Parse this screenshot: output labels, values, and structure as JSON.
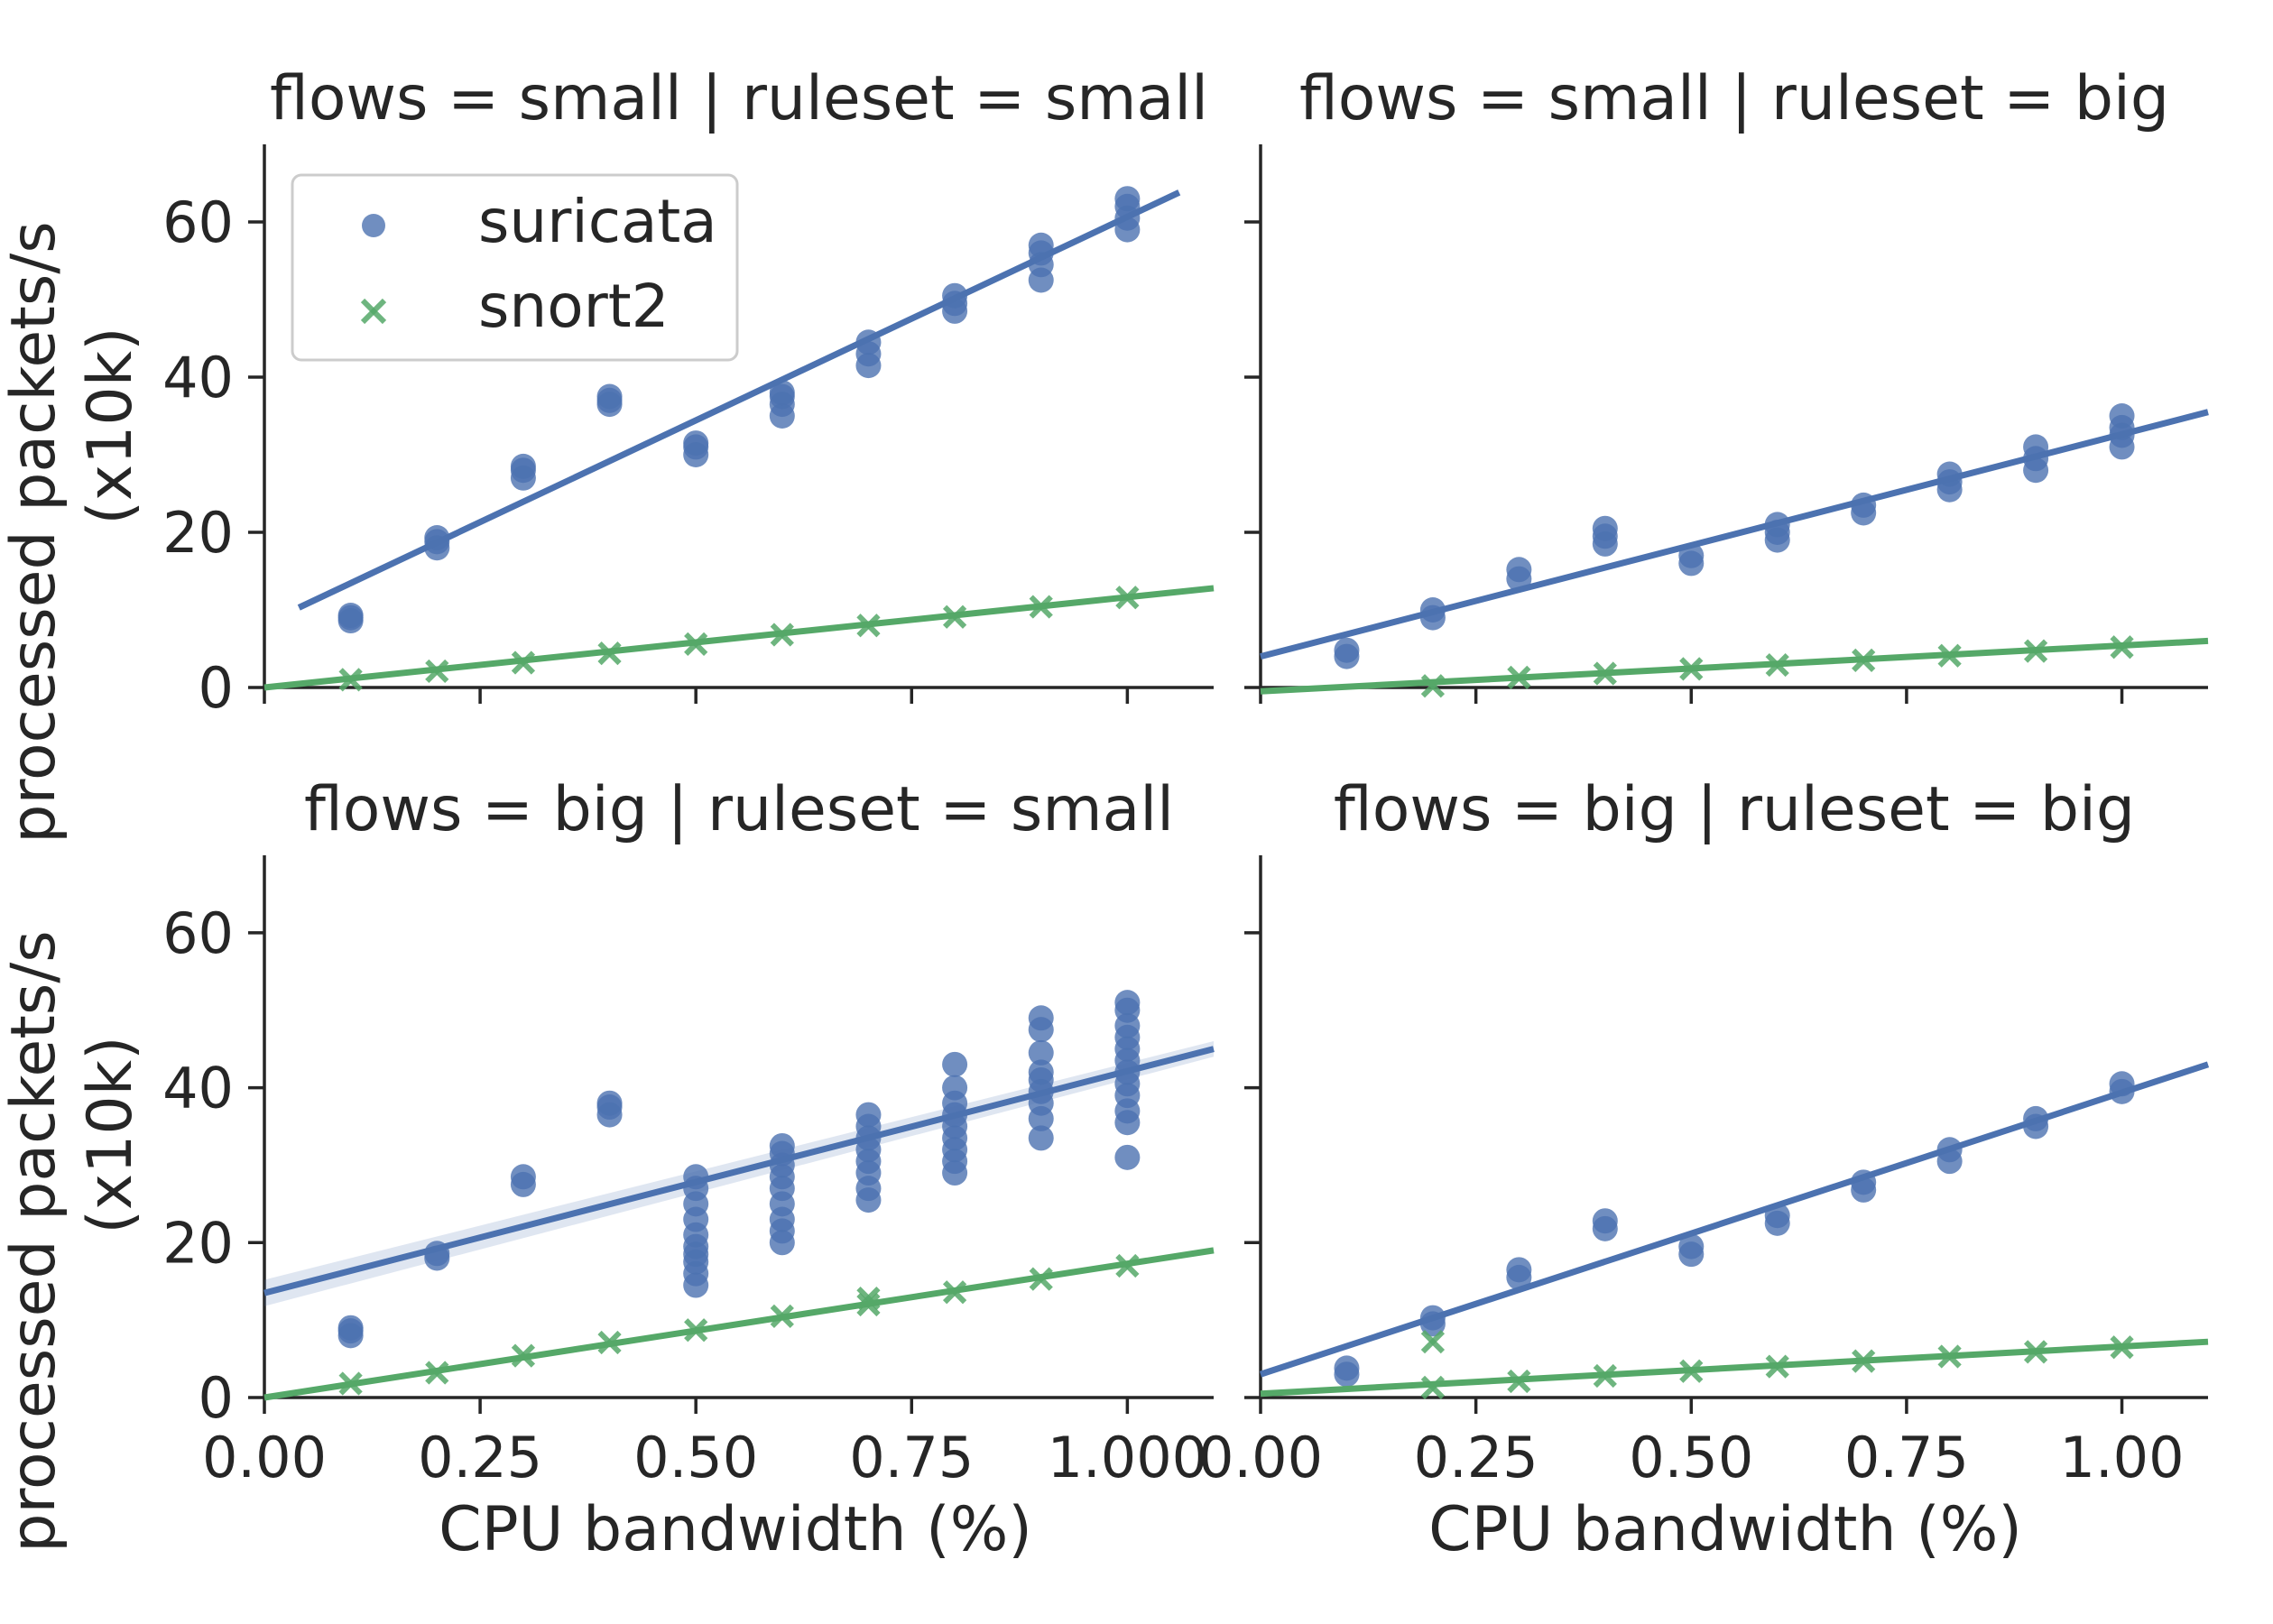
{
  "colors": {
    "suricata": "#4c72b0",
    "snort2": "#55a868",
    "text": "#262626",
    "axis": "#262626",
    "band": "#4c72b0"
  },
  "legend": {
    "placement": "top-left (first panel)",
    "items": [
      "suricata",
      "snort2"
    ]
  },
  "figure": {
    "ylabel": "processed packets/s",
    "ylabel2": "(x10k)",
    "xlabel": "CPU bandwidth (%)"
  },
  "chart_data": [
    {
      "type": "scatter",
      "title": "flows = small | ruleset = small",
      "xlabel": "",
      "ylabel": "processed packets/s (x10k)",
      "xlim": [
        0.0,
        1.1
      ],
      "ylim": [
        0,
        70
      ],
      "xticks": [
        "0.00",
        "0.25",
        "0.50",
        "0.75",
        "1.00"
      ],
      "yticks": [
        "0",
        "20",
        "40",
        "60"
      ],
      "show_xtick_labels": false,
      "show_ytick_labels": true,
      "show_xlabel": false,
      "show_ylabel": true,
      "grid": false,
      "legend": "top-left",
      "series": [
        {
          "name": "suricata",
          "marker": "circle",
          "points": [
            [
              0.1,
              9
            ],
            [
              0.1,
              8.6
            ],
            [
              0.1,
              9.3
            ],
            [
              0.2,
              18
            ],
            [
              0.2,
              18.8
            ],
            [
              0.2,
              19.3
            ],
            [
              0.3,
              27
            ],
            [
              0.3,
              28
            ],
            [
              0.3,
              28.5
            ],
            [
              0.4,
              36.5
            ],
            [
              0.4,
              37.5
            ],
            [
              0.4,
              37
            ],
            [
              0.5,
              30
            ],
            [
              0.5,
              31
            ],
            [
              0.5,
              31.5
            ],
            [
              0.6,
              35
            ],
            [
              0.6,
              36.5
            ],
            [
              0.6,
              37.5
            ],
            [
              0.6,
              38
            ],
            [
              0.7,
              41.5
            ],
            [
              0.7,
              43
            ],
            [
              0.7,
              44.5
            ],
            [
              0.8,
              48.5
            ],
            [
              0.8,
              49.5
            ],
            [
              0.8,
              50.5
            ],
            [
              0.9,
              52.5
            ],
            [
              0.9,
              54.5
            ],
            [
              0.9,
              56
            ],
            [
              0.9,
              57
            ],
            [
              1.0,
              59
            ],
            [
              1.0,
              60.5
            ],
            [
              1.0,
              62
            ],
            [
              1.0,
              63
            ]
          ],
          "fit": {
            "x": [
              0.04,
              1.06
            ],
            "y": [
              10.3,
              63.8
            ]
          }
        },
        {
          "name": "snort2",
          "marker": "x",
          "points": [
            [
              0.1,
              1.0
            ],
            [
              0.2,
              2.1
            ],
            [
              0.3,
              3.2
            ],
            [
              0.4,
              4.4
            ],
            [
              0.5,
              5.6
            ],
            [
              0.6,
              6.8
            ],
            [
              0.7,
              8.0
            ],
            [
              0.8,
              9.1
            ],
            [
              0.9,
              10.4
            ],
            [
              1.0,
              11.6
            ]
          ],
          "fit": {
            "x": [
              0.0,
              1.1
            ],
            "y": [
              0.0,
              12.8
            ]
          }
        }
      ]
    },
    {
      "type": "scatter",
      "title": "flows = small | ruleset = big",
      "xlabel": "",
      "ylabel": "",
      "xlim": [
        0.0,
        1.1
      ],
      "ylim": [
        0,
        70
      ],
      "xticks": [
        "0.00",
        "0.25",
        "0.50",
        "0.75",
        "1.00"
      ],
      "yticks": [
        "0",
        "20",
        "40",
        "60"
      ],
      "show_xtick_labels": false,
      "show_ytick_labels": false,
      "show_xlabel": false,
      "show_ylabel": false,
      "grid": false,
      "legend": "",
      "series": [
        {
          "name": "suricata",
          "marker": "circle",
          "points": [
            [
              0.1,
              4
            ],
            [
              0.1,
              4.8
            ],
            [
              0.2,
              9
            ],
            [
              0.2,
              10
            ],
            [
              0.3,
              14
            ],
            [
              0.3,
              15.2
            ],
            [
              0.4,
              18.5
            ],
            [
              0.4,
              19.5
            ],
            [
              0.4,
              20.5
            ],
            [
              0.5,
              16
            ],
            [
              0.5,
              17
            ],
            [
              0.6,
              19
            ],
            [
              0.6,
              20
            ],
            [
              0.6,
              21
            ],
            [
              0.7,
              22.5
            ],
            [
              0.7,
              23.5
            ],
            [
              0.8,
              25.5
            ],
            [
              0.8,
              26.5
            ],
            [
              0.8,
              27.5
            ],
            [
              0.9,
              28
            ],
            [
              0.9,
              29.5
            ],
            [
              0.9,
              31
            ],
            [
              1.0,
              31
            ],
            [
              1.0,
              32.5
            ],
            [
              1.0,
              33.5
            ],
            [
              1.0,
              35
            ]
          ],
          "fit": {
            "x": [
              0.0,
              1.1
            ],
            "y": [
              4.0,
              35.5
            ]
          }
        },
        {
          "name": "snort2",
          "marker": "x",
          "points": [
            [
              0.2,
              0.2
            ],
            [
              0.3,
              1.3
            ],
            [
              0.4,
              1.8
            ],
            [
              0.5,
              2.4
            ],
            [
              0.6,
              2.9
            ],
            [
              0.7,
              3.5
            ],
            [
              0.8,
              4.1
            ],
            [
              0.9,
              4.7
            ],
            [
              1.0,
              5.2
            ]
          ],
          "fit": {
            "x": [
              0.0,
              1.1
            ],
            "y": [
              -0.5,
              6.0
            ]
          }
        }
      ]
    },
    {
      "type": "scatter",
      "title": "flows = big | ruleset = small",
      "xlabel": "CPU bandwidth (%)",
      "ylabel": "processed packets/s (x10k)",
      "xlim": [
        0.0,
        1.1
      ],
      "ylim": [
        0,
        70
      ],
      "xticks": [
        "0.00",
        "0.25",
        "0.50",
        "0.75",
        "1.000"
      ],
      "yticks": [
        "0",
        "20",
        "40",
        "60"
      ],
      "show_xtick_labels": true,
      "show_ytick_labels": true,
      "show_xlabel": true,
      "show_ylabel": true,
      "grid": false,
      "legend": "",
      "series": [
        {
          "name": "suricata",
          "marker": "circle",
          "points": [
            [
              0.1,
              8
            ],
            [
              0.1,
              8.6
            ],
            [
              0.1,
              9
            ],
            [
              0.2,
              18
            ],
            [
              0.2,
              18.6
            ],
            [
              0.3,
              27.5
            ],
            [
              0.3,
              28.5
            ],
            [
              0.4,
              36.5
            ],
            [
              0.4,
              37.5
            ],
            [
              0.4,
              38
            ],
            [
              0.5,
              14.5
            ],
            [
              0.5,
              16
            ],
            [
              0.5,
              17.5
            ],
            [
              0.5,
              18.5
            ],
            [
              0.5,
              19.5
            ],
            [
              0.5,
              21
            ],
            [
              0.5,
              23
            ],
            [
              0.5,
              25
            ],
            [
              0.5,
              27
            ],
            [
              0.5,
              28.5
            ],
            [
              0.6,
              20
            ],
            [
              0.6,
              21.5
            ],
            [
              0.6,
              23
            ],
            [
              0.6,
              25
            ],
            [
              0.6,
              27
            ],
            [
              0.6,
              28.5
            ],
            [
              0.6,
              30
            ],
            [
              0.6,
              31.5
            ],
            [
              0.6,
              32.5
            ],
            [
              0.7,
              25.5
            ],
            [
              0.7,
              27
            ],
            [
              0.7,
              29
            ],
            [
              0.7,
              30.5
            ],
            [
              0.7,
              32
            ],
            [
              0.7,
              33.5
            ],
            [
              0.7,
              35
            ],
            [
              0.7,
              36.5
            ],
            [
              0.8,
              29
            ],
            [
              0.8,
              30.5
            ],
            [
              0.8,
              32
            ],
            [
              0.8,
              33.5
            ],
            [
              0.8,
              35
            ],
            [
              0.8,
              36.5
            ],
            [
              0.8,
              38
            ],
            [
              0.8,
              40
            ],
            [
              0.8,
              43
            ],
            [
              0.9,
              33.5
            ],
            [
              0.9,
              36
            ],
            [
              0.9,
              38
            ],
            [
              0.9,
              39.5
            ],
            [
              0.9,
              41
            ],
            [
              0.9,
              42
            ],
            [
              0.9,
              44.5
            ],
            [
              0.9,
              47.5
            ],
            [
              0.9,
              49
            ],
            [
              1.0,
              31
            ],
            [
              1.0,
              35.5
            ],
            [
              1.0,
              37
            ],
            [
              1.0,
              39
            ],
            [
              1.0,
              40.5
            ],
            [
              1.0,
              42
            ],
            [
              1.0,
              43.5
            ],
            [
              1.0,
              45
            ],
            [
              1.0,
              46.5
            ],
            [
              1.0,
              48
            ],
            [
              1.0,
              50
            ],
            [
              1.0,
              51
            ]
          ],
          "fit": {
            "x": [
              0.0,
              1.1
            ],
            "y": [
              13.5,
              45.0
            ]
          },
          "ci": {
            "x": [
              0.0,
              1.1
            ],
            "upper": [
              15.2,
              46.0
            ],
            "lower": [
              11.8,
              44.0
            ]
          }
        },
        {
          "name": "snort2",
          "marker": "x",
          "points": [
            [
              0.1,
              1.8
            ],
            [
              0.2,
              3.2
            ],
            [
              0.3,
              5.4
            ],
            [
              0.4,
              7.1
            ],
            [
              0.5,
              8.7
            ],
            [
              0.6,
              10.5
            ],
            [
              0.7,
              12.0
            ],
            [
              0.7,
              12.8
            ],
            [
              0.8,
              13.6
            ],
            [
              0.9,
              15.3
            ],
            [
              1.0,
              17.0
            ]
          ],
          "fit": {
            "x": [
              0.0,
              1.1
            ],
            "y": [
              0.0,
              19.0
            ]
          }
        }
      ]
    },
    {
      "type": "scatter",
      "title": "flows = big | ruleset = big",
      "xlabel": "CPU bandwidth (%)",
      "ylabel": "",
      "xlim": [
        0.0,
        1.1
      ],
      "ylim": [
        0,
        70
      ],
      "xticks": [
        "0.00",
        "0.25",
        "0.50",
        "0.75",
        "1.00"
      ],
      "yticks": [
        "0",
        "20",
        "40",
        "60"
      ],
      "show_xtick_labels": true,
      "show_ytick_labels": false,
      "show_xlabel": true,
      "show_ylabel": false,
      "grid": false,
      "legend": "",
      "series": [
        {
          "name": "suricata",
          "marker": "circle",
          "points": [
            [
              0.1,
              3
            ],
            [
              0.1,
              3.8
            ],
            [
              0.2,
              9.5
            ],
            [
              0.2,
              10.3
            ],
            [
              0.3,
              15.5
            ],
            [
              0.3,
              16.5
            ],
            [
              0.4,
              21.8
            ],
            [
              0.4,
              22.8
            ],
            [
              0.5,
              18.5
            ],
            [
              0.5,
              19.5
            ],
            [
              0.6,
              22.5
            ],
            [
              0.6,
              23.5
            ],
            [
              0.7,
              26.8
            ],
            [
              0.7,
              27.8
            ],
            [
              0.8,
              30.5
            ],
            [
              0.8,
              32
            ],
            [
              0.9,
              35
            ],
            [
              0.9,
              36
            ],
            [
              1.0,
              39.5
            ],
            [
              1.0,
              40.5
            ]
          ],
          "fit": {
            "x": [
              0.0,
              1.1
            ],
            "y": [
              3.0,
              43.0
            ]
          }
        },
        {
          "name": "snort2",
          "marker": "x",
          "points": [
            [
              0.2,
              1.3
            ],
            [
              0.2,
              7.2
            ],
            [
              0.3,
              2.1
            ],
            [
              0.4,
              2.8
            ],
            [
              0.5,
              3.4
            ],
            [
              0.6,
              4.0
            ],
            [
              0.7,
              4.7
            ],
            [
              0.8,
              5.3
            ],
            [
              0.9,
              5.9
            ],
            [
              1.0,
              6.5
            ]
          ],
          "fit": {
            "x": [
              0.0,
              1.1
            ],
            "y": [
              0.5,
              7.2
            ]
          }
        }
      ]
    }
  ]
}
